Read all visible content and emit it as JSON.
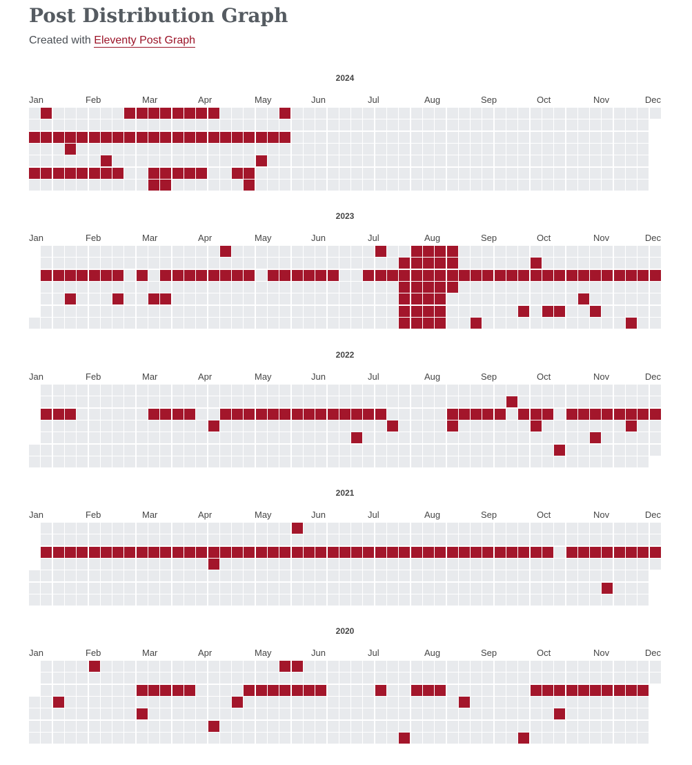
{
  "header": {
    "title": "Post Distribution Graph",
    "subtitle_prefix": "Created with",
    "subtitle_link": "Eleventy Post Graph"
  },
  "months": [
    "Jan",
    "Feb",
    "Mar",
    "Apr",
    "May",
    "Jun",
    "Jul",
    "Aug",
    "Sep",
    "Oct",
    "Nov",
    "Dec"
  ],
  "colors": {
    "empty": "#e8eaed",
    "post": "#a3162b",
    "link": "#9b1327"
  },
  "years": [
    {
      "label": "2024",
      "rows": [
        "0101000111111111000000100000000000000000000000000000000",
        "0000000000000000000000000000000000000000000000000000000",
        "1111111111111111111111100000000000000000000000000000000",
        "0000001000000000000000000000000000000000000000000000000",
        "0000000000000001000000000000000000000000000000000000000",
        "1111111100000111100001100000000000000000000000000000000",
        "0000000000001100000000100000000000000000000000000000000"
      ]
    },
    {
      "label": "2023",
      "rows": [
        "0000000000000000000000001000000000000000100000011110000000000000000000000000000",
        "0000000000000000000000000000000000000000000000111110000000000000001000000000000",
        "1111111011111111110111111000000000000001111111111111111111111111111111111111111",
        "0000000000000000000000000000000000000000000000111110000000000000000000000000000",
        "0010010110000000000000000000000000000000000000111100000000000000000000010000000",
        "0000000000000000000000000000000000000000000000111100000000000010110001000000000",
        "0000000000000000000000000000000000000000000000111100100000000000000000000100000"
      ]
    }
  ]
}
